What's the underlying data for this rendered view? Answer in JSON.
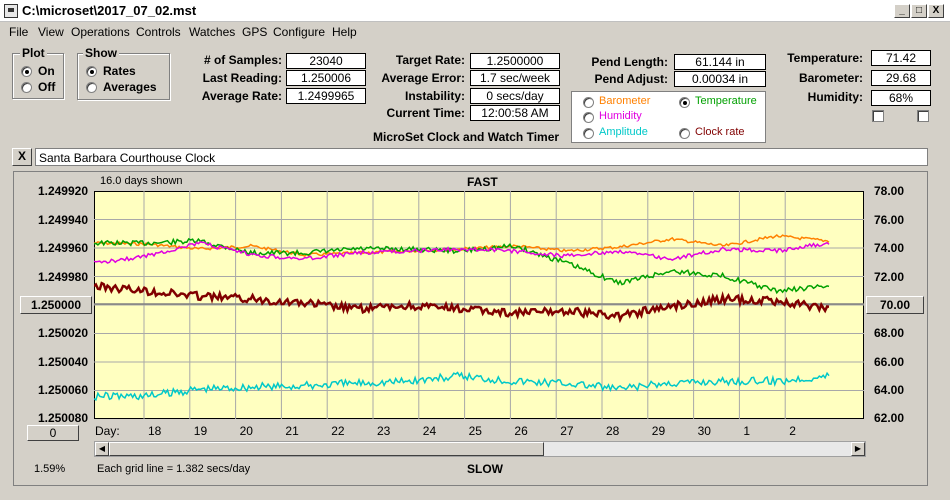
{
  "window": {
    "title": "C:\\microset\\2017_07_02.mst",
    "min": "_",
    "max": "□",
    "close": "X"
  },
  "menu": [
    "File",
    "View",
    "Operations",
    "Controls",
    "Watches",
    "GPS",
    "Configure",
    "Help"
  ],
  "plot_group": {
    "title": "Plot",
    "on": "On",
    "off": "Off"
  },
  "show_group": {
    "title": "Show",
    "rates": "Rates",
    "averages": "Averages"
  },
  "stats": {
    "samples_label": "# of Samples:",
    "samples": "23040",
    "last_label": "Last Reading:",
    "last": "1.250006",
    "avg_label": "Average Rate:",
    "avg": "1.2499965"
  },
  "target": {
    "target_label": "Target Rate:",
    "target": "1.2500000",
    "err_label": "Average Error:",
    "err": "1.7 sec/week",
    "inst_label": "Instability:",
    "inst": "0 secs/day",
    "time_label": "Current Time:",
    "time": "12:00:58 AM"
  },
  "timer_title": "MicroSet Clock and Watch Timer",
  "pend": {
    "len_label": "Pend Length:",
    "len": "61.144 in",
    "adj_label": "Pend Adjust:",
    "adj": "0.00034 in"
  },
  "env": {
    "temp_label": "Temperature:",
    "temp": "71.42",
    "baro_label": "Barometer:",
    "baro": "29.68",
    "hum_label": "Humidity:",
    "hum": "68%"
  },
  "overlay": {
    "barometer": "Barometer",
    "temperature": "Temperature",
    "humidity": "Humidity",
    "amplitude": "Amplitude",
    "clock_rate": "Clock rate",
    "colors": {
      "barometer": "#ff8000",
      "temperature": "#00a000",
      "humidity": "#e000e0",
      "amplitude": "#00c8c8",
      "clock_rate": "#800000"
    }
  },
  "clock_name": "Santa Barbara Courthouse Clock",
  "clear_btn": "X",
  "graph": {
    "days_shown": "16.0 days shown",
    "fast": "FAST",
    "slow": "SLOW",
    "left_ticks": [
      "1.249920",
      "1.249940",
      "1.249960",
      "1.249980",
      "1.250000",
      "1.250020",
      "1.250040",
      "1.250060",
      "1.250080"
    ],
    "right_ticks": [
      "78.00",
      "76.00",
      "74.00",
      "72.00",
      "70.00",
      "68.00",
      "66.00",
      "64.00",
      "62.00"
    ],
    "left_btn": "1.250000",
    "right_btn": "70.00",
    "zero_btn": "0",
    "day_label": "Day:",
    "days": [
      "18",
      "19",
      "20",
      "21",
      "22",
      "23",
      "24",
      "25",
      "26",
      "27",
      "28",
      "29",
      "30",
      "1",
      "2"
    ],
    "percent": "1.59%",
    "grid_note": "Each grid line = 1.382 secs/day"
  }
}
